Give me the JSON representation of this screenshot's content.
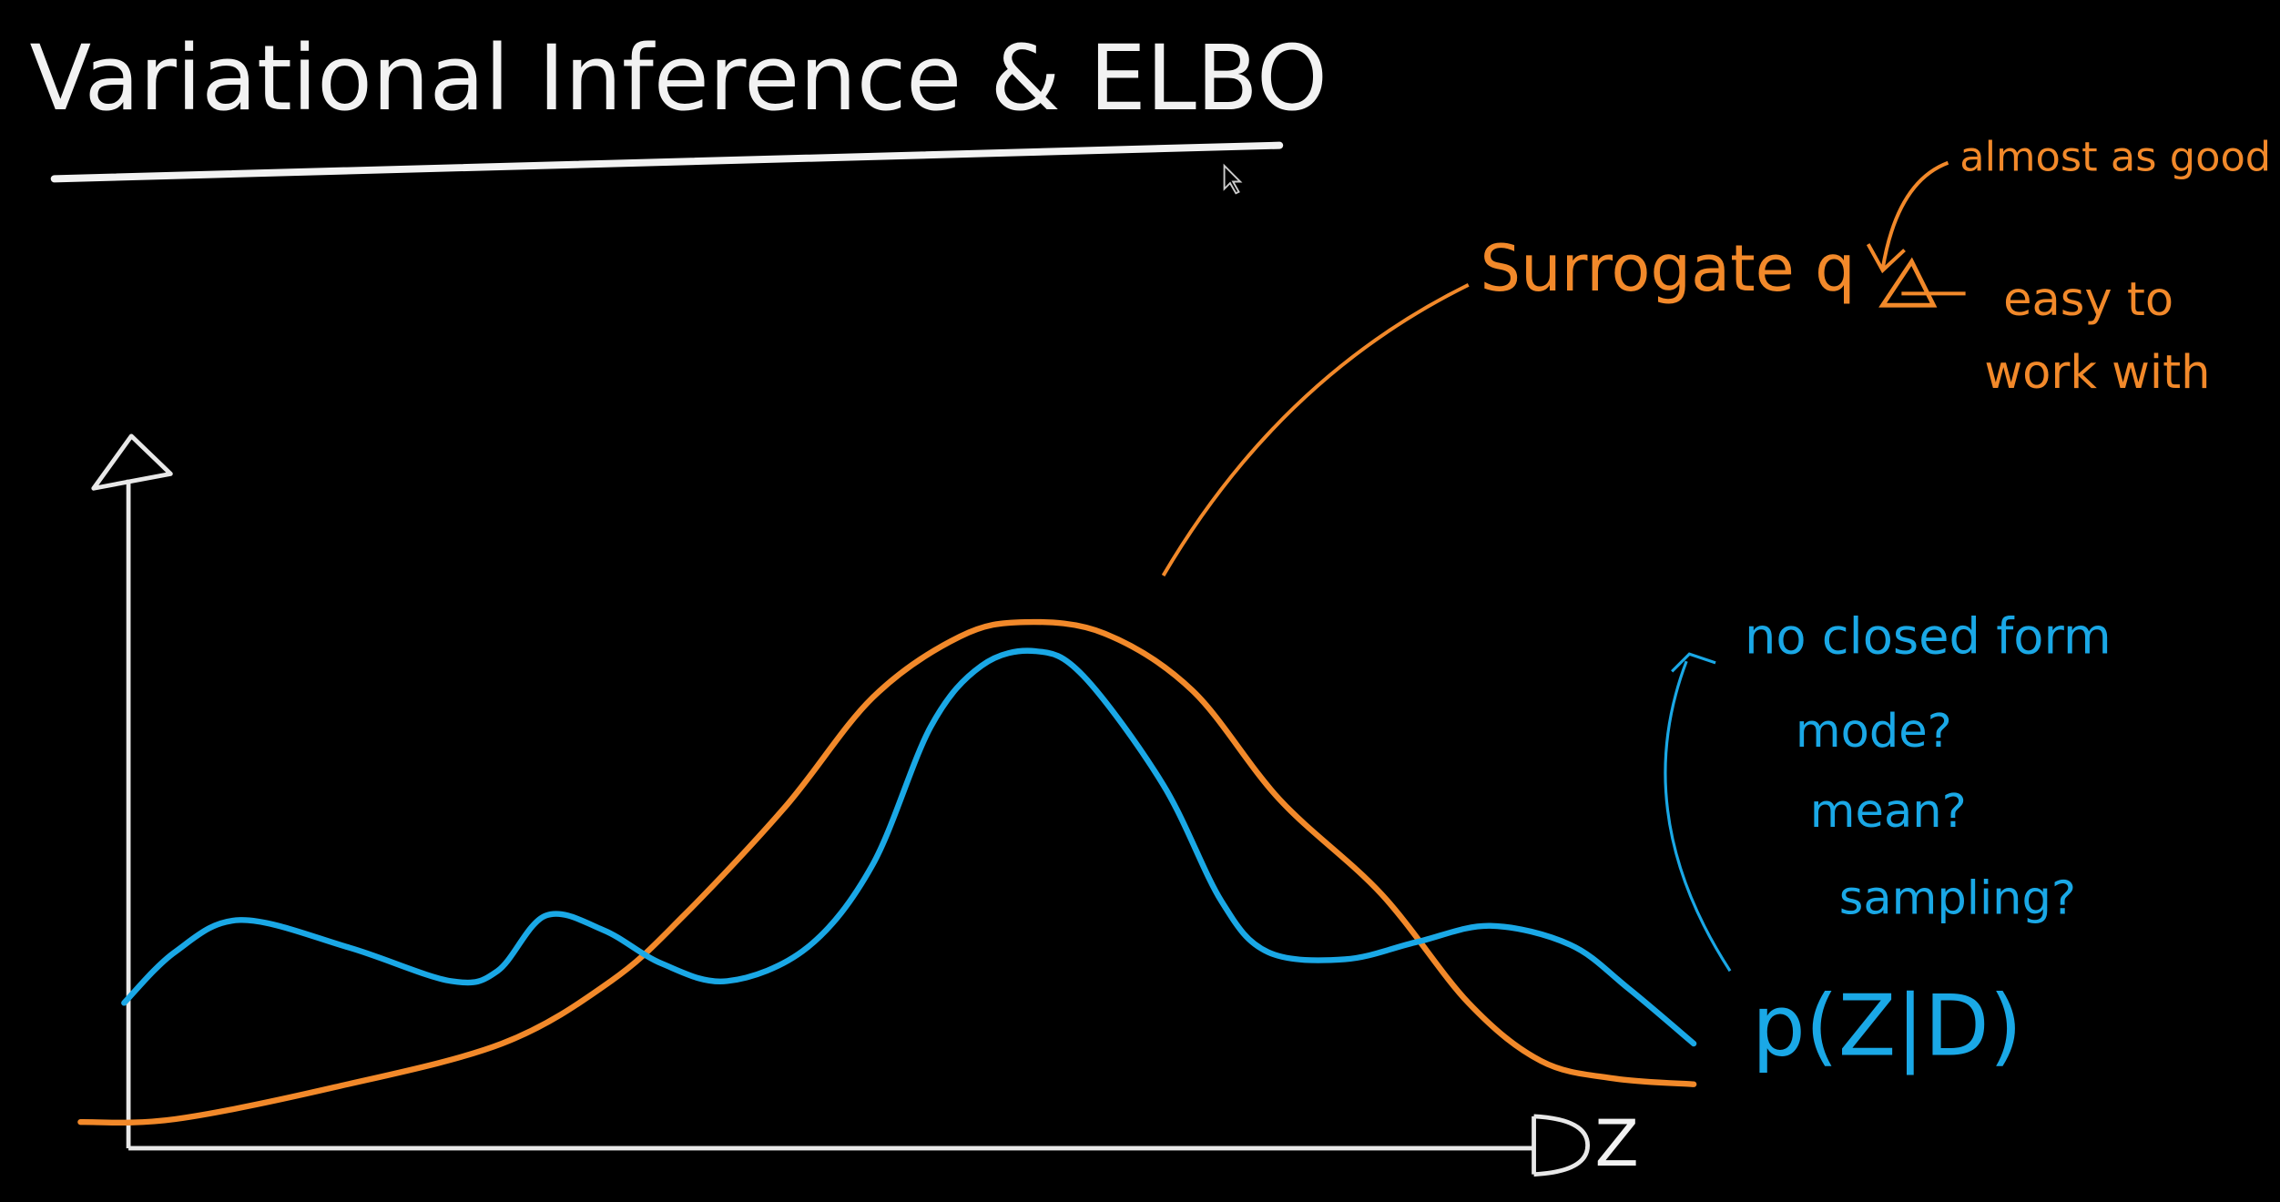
{
  "title": "Variational Inference & ELBO",
  "annotations": {
    "surrogate": "Surrogate q",
    "almost_good": "almost as good",
    "easy": [
      "easy to",
      "work with"
    ],
    "no_closed_form": "no closed form",
    "questions": [
      "mode?",
      "mean?",
      "sampling?"
    ],
    "posterior": "p(Z|D)",
    "axis_label": "Z"
  }
}
